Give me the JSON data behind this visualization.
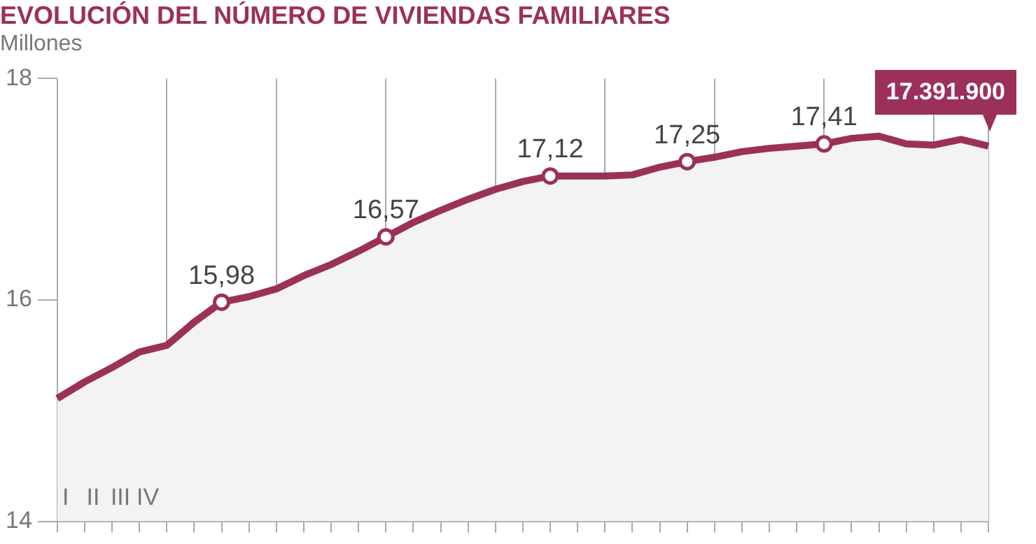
{
  "chart_data": {
    "type": "area",
    "title": "EVOLUCIÓN DEL NÚMERO DE VIVIENDAS FAMILIARES",
    "ylabel": "Millones",
    "categories": [
      "I",
      "II",
      "III",
      "IV",
      null,
      null,
      null,
      null,
      null,
      null,
      null,
      null,
      null,
      null,
      null,
      null,
      null,
      null,
      null,
      null,
      null,
      null,
      null,
      null,
      null,
      null,
      null,
      null,
      null,
      null,
      null,
      null,
      null,
      null,
      null
    ],
    "series": [
      {
        "color": "#9b3159",
        "values": [
          15.11,
          15.26,
          15.39,
          15.53,
          15.59,
          15.8,
          15.98,
          16.03,
          16.1,
          16.22,
          16.32,
          16.44,
          16.57,
          16.7,
          16.81,
          16.91,
          17.0,
          17.07,
          17.12,
          17.12,
          17.12,
          17.13,
          17.2,
          17.25,
          17.29,
          17.34,
          17.37,
          17.39,
          17.41,
          17.46,
          17.48,
          17.41,
          17.4,
          17.45,
          17.39
        ],
        "value_labels": [
          null,
          null,
          null,
          null,
          null,
          null,
          "15,98",
          null,
          null,
          null,
          null,
          null,
          "16,57",
          null,
          null,
          null,
          null,
          null,
          "17,12",
          null,
          null,
          null,
          null,
          "17,25",
          null,
          null,
          null,
          null,
          "17,41",
          null,
          null,
          null,
          null,
          null,
          null
        ]
      }
    ],
    "annotations": [
      {
        "text": "17.391.900",
        "y": 17.39
      }
    ],
    "ylim": [
      14,
      18
    ],
    "yticks": [
      14,
      16,
      18
    ],
    "grid": "x",
    "legend": false
  }
}
